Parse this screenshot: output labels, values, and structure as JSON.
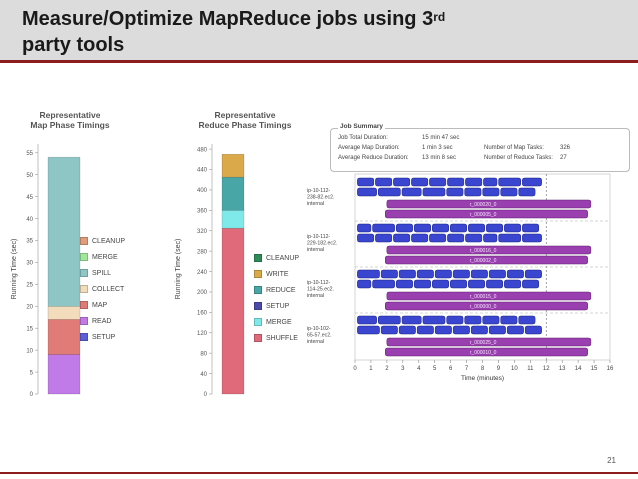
{
  "slide": {
    "title_line1": "Measure/Optimize MapReduce jobs using 3",
    "title_sup": "rd",
    "title_line2": "party tools",
    "page_number": "21"
  },
  "map_chart": {
    "title_line1": "Representative",
    "title_line2": "Map Phase Timings",
    "ylabel": "Running Time (sec)",
    "ticks": [
      "55",
      "50",
      "45",
      "40",
      "35",
      "30",
      "25",
      "20",
      "15",
      "10",
      "5",
      "0"
    ],
    "legend": [
      {
        "label": "CLEANUP",
        "color": "#e39c7a"
      },
      {
        "label": "MERGE",
        "color": "#9fe89a"
      },
      {
        "label": "SPILL",
        "color": "#8ec6c6"
      },
      {
        "label": "COLLECT",
        "color": "#f2dcbc"
      },
      {
        "label": "MAP",
        "color": "#e07b78"
      },
      {
        "label": "READ",
        "color": "#c07be8"
      },
      {
        "label": "SETUP",
        "color": "#5a5fd8"
      }
    ]
  },
  "reduce_chart": {
    "title_line1": "Representative",
    "title_line2": "Reduce Phase Timings",
    "ylabel": "Running Time (sec)",
    "ticks": [
      "480",
      "440",
      "400",
      "360",
      "320",
      "280",
      "240",
      "200",
      "160",
      "120",
      "80",
      "40",
      "0"
    ],
    "legend": [
      {
        "label": "CLEANUP",
        "color": "#2e8b57"
      },
      {
        "label": "WRITE",
        "color": "#d9a94a"
      },
      {
        "label": "REDUCE",
        "color": "#49a6a6"
      },
      {
        "label": "SETUP",
        "color": "#4a4aa8"
      },
      {
        "label": "MERGE",
        "color": "#7fe8e8"
      },
      {
        "label": "SHUFFLE",
        "color": "#e06a7a"
      }
    ]
  },
  "chart_data": [
    {
      "type": "bar",
      "title": "Representative Map Phase Timings",
      "ylabel": "Running Time (sec)",
      "ylim": [
        0,
        57
      ],
      "series": [
        {
          "name": "SETUP",
          "values": [
            0
          ]
        },
        {
          "name": "READ",
          "values": [
            9
          ]
        },
        {
          "name": "MAP",
          "values": [
            8
          ]
        },
        {
          "name": "COLLECT",
          "values": [
            3
          ]
        },
        {
          "name": "SPILL",
          "values": [
            34
          ]
        },
        {
          "name": "MERGE",
          "values": [
            0
          ]
        },
        {
          "name": "CLEANUP",
          "values": [
            0
          ]
        }
      ]
    },
    {
      "type": "bar",
      "title": "Representative Reduce Phase Timings",
      "ylabel": "Running Time (sec)",
      "ylim": [
        0,
        490
      ],
      "series": [
        {
          "name": "SHUFFLE",
          "values": [
            325
          ]
        },
        {
          "name": "MERGE",
          "values": [
            35
          ]
        },
        {
          "name": "SETUP",
          "values": [
            0
          ]
        },
        {
          "name": "REDUCE",
          "values": [
            65
          ]
        },
        {
          "name": "WRITE",
          "values": [
            45
          ]
        },
        {
          "name": "CLEANUP",
          "values": [
            0
          ]
        }
      ]
    }
  ],
  "job_summary": {
    "title": "Job Summary",
    "total_label": "Job Total Duration:",
    "total_value": "15 min 47 sec",
    "avg_map_label": "Average Map Duration:",
    "avg_map_value": "1 min 3 sec",
    "avg_reduce_label": "Average Reduce Duration:",
    "avg_reduce_value": "13 min 8 sec",
    "map_tasks_label": "Number of Map Tasks:",
    "map_tasks_value": "326",
    "reduce_tasks_label": "Number of Reduce Tasks:",
    "reduce_tasks_value": "27"
  },
  "timeline": {
    "xlabel": "Time (minutes)",
    "ticks": [
      "0",
      "1",
      "2",
      "3",
      "4",
      "5",
      "6",
      "7",
      "8",
      "9",
      "10",
      "11",
      "12",
      "13",
      "14",
      "15",
      "16"
    ],
    "hosts": [
      {
        "name": "ip-10-112-238-82.ec2.internal",
        "r1": "r_000020_0",
        "r2": "r_000005_0"
      },
      {
        "name": "ip-10-112-229-182.ec2.internal",
        "r1": "r_000016_0",
        "r2": "r_000002_0"
      },
      {
        "name": "ip-10-112-114-25.ec2.internal",
        "r1": "r_000015_0",
        "r2": "r_000000_0"
      },
      {
        "name": "ip-10-102-65-57.ec2.internal",
        "r1": "r_000025_0",
        "r2": "r_000010_0"
      }
    ]
  }
}
